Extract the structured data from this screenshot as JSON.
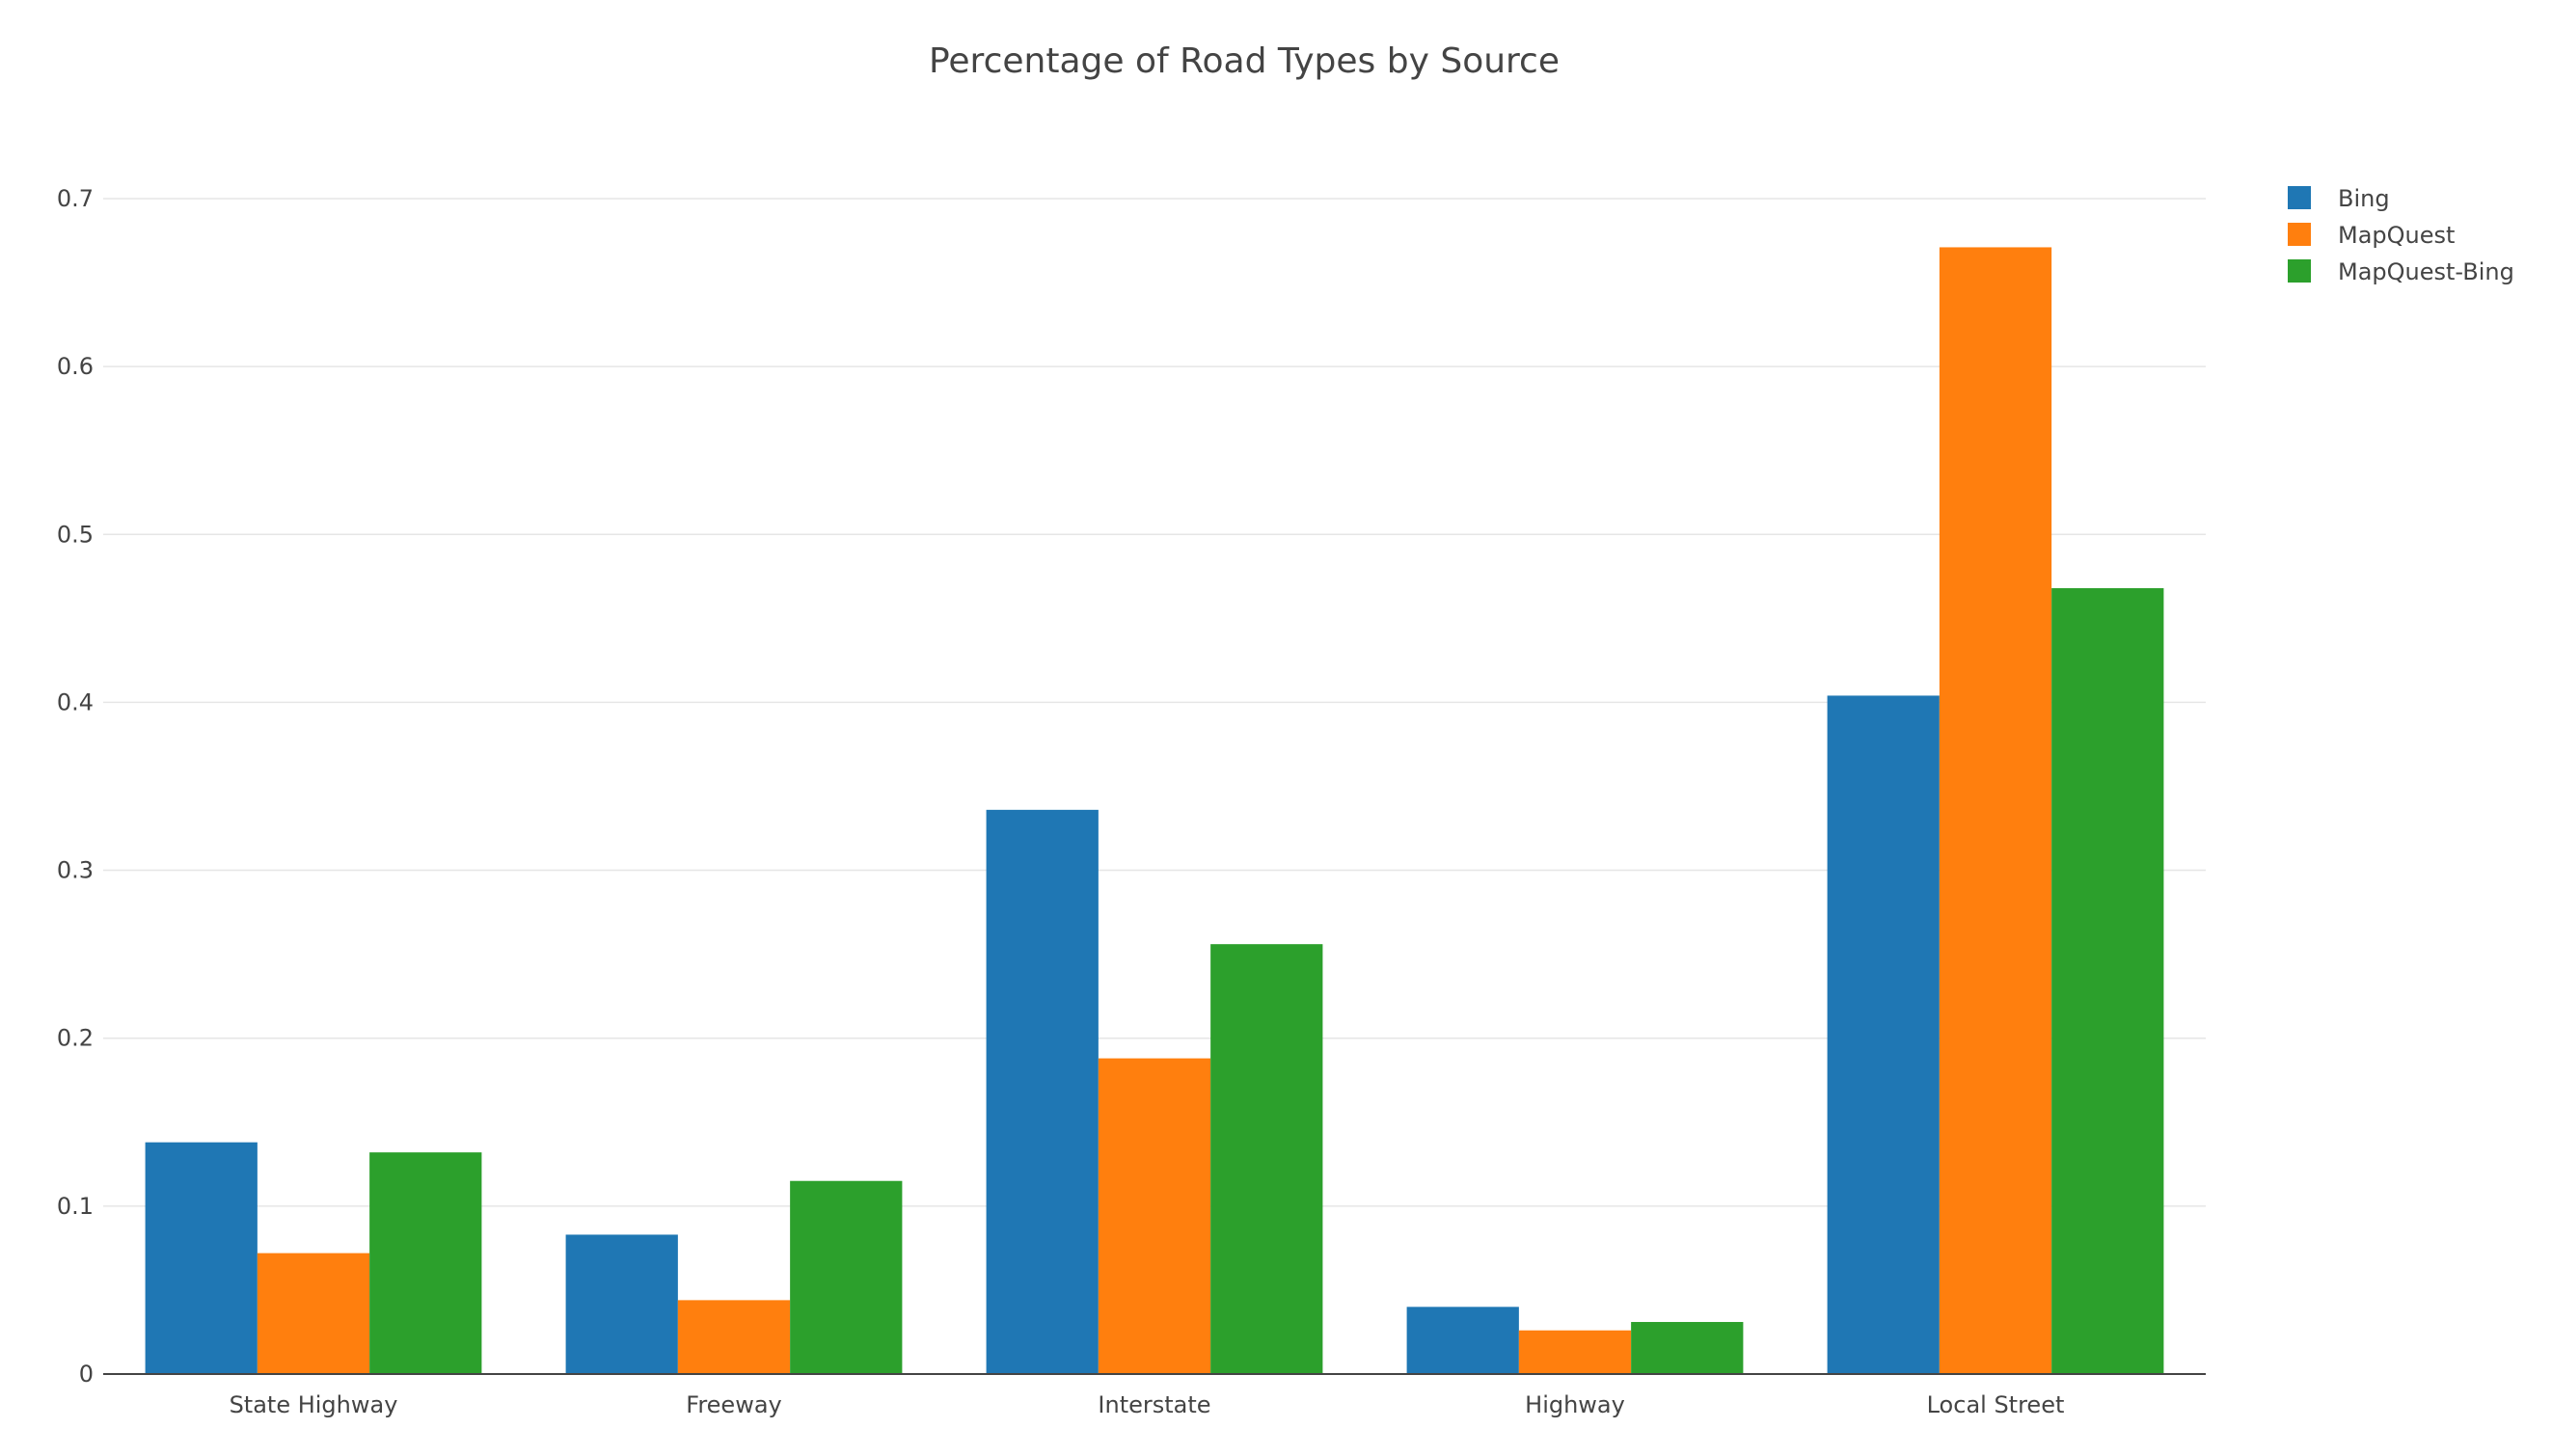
{
  "chart_data": {
    "type": "bar",
    "title": "Percentage of Road Types by Source",
    "xlabel": "",
    "ylabel": "",
    "categories": [
      "State Highway",
      "Freeway",
      "Interstate",
      "Highway",
      "Local Street"
    ],
    "series": [
      {
        "name": "Bing",
        "color": "#1f77b4",
        "values": [
          0.138,
          0.083,
          0.336,
          0.04,
          0.404
        ]
      },
      {
        "name": "MapQuest",
        "color": "#ff7f0e",
        "values": [
          0.072,
          0.044,
          0.188,
          0.026,
          0.671
        ]
      },
      {
        "name": "MapQuest-Bing",
        "color": "#2ca02c",
        "values": [
          0.132,
          0.115,
          0.256,
          0.031,
          0.468
        ]
      }
    ],
    "ylim": [
      0,
      0.735
    ],
    "yticks": [
      0,
      0.1,
      0.2,
      0.3,
      0.4,
      0.5,
      0.6,
      0.7
    ],
    "ytick_labels": [
      "0",
      "0.1",
      "0.2",
      "0.3",
      "0.4",
      "0.5",
      "0.6",
      "0.7"
    ],
    "grid": true,
    "legend_position": "top-right"
  }
}
